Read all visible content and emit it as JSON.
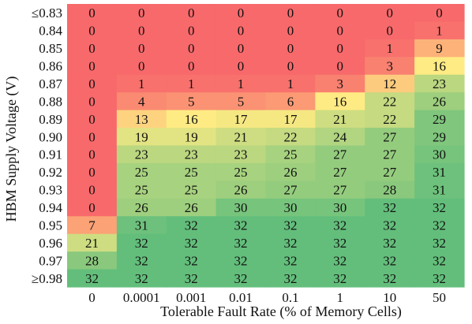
{
  "chart_data": {
    "type": "heatmap",
    "xlabel": "Tolerable Fault Rate (% of Memory Cells)",
    "ylabel": "HBM Supply Voltage (V)",
    "x_categories": [
      "0",
      "0.0001",
      "0.001",
      "0.01",
      "0.1",
      "1",
      "10",
      "50"
    ],
    "y_categories": [
      "≤0.83",
      "0.84",
      "0.85",
      "0.86",
      "0.87",
      "0.88",
      "0.89",
      "0.90",
      "0.91",
      "0.92",
      "0.93",
      "0.94",
      "0.95",
      "0.96",
      "0.97",
      "≥0.98"
    ],
    "values": [
      [
        0,
        0,
        0,
        0,
        0,
        0,
        0,
        0
      ],
      [
        0,
        0,
        0,
        0,
        0,
        0,
        0,
        1
      ],
      [
        0,
        0,
        0,
        0,
        0,
        0,
        1,
        9
      ],
      [
        0,
        0,
        0,
        0,
        0,
        0,
        3,
        16
      ],
      [
        0,
        1,
        1,
        1,
        1,
        3,
        12,
        23
      ],
      [
        0,
        4,
        5,
        5,
        6,
        16,
        22,
        26
      ],
      [
        0,
        13,
        16,
        17,
        17,
        21,
        22,
        29
      ],
      [
        0,
        19,
        19,
        21,
        22,
        24,
        27,
        29
      ],
      [
        0,
        23,
        23,
        23,
        25,
        27,
        27,
        30
      ],
      [
        0,
        25,
        25,
        25,
        26,
        27,
        27,
        31
      ],
      [
        0,
        25,
        25,
        26,
        27,
        27,
        28,
        31
      ],
      [
        0,
        26,
        26,
        30,
        30,
        30,
        32,
        32
      ],
      [
        7,
        31,
        32,
        32,
        32,
        32,
        32,
        32
      ],
      [
        21,
        32,
        32,
        32,
        32,
        32,
        32,
        32
      ],
      [
        28,
        32,
        32,
        32,
        32,
        32,
        32,
        32
      ],
      [
        32,
        32,
        32,
        32,
        32,
        32,
        32,
        32
      ]
    ],
    "value_range": [
      0,
      32
    ],
    "colors": {
      "low": "#f8696b",
      "mid": "#ffeb84",
      "high": "#63be7b"
    },
    "grid": false,
    "legend": "none"
  }
}
